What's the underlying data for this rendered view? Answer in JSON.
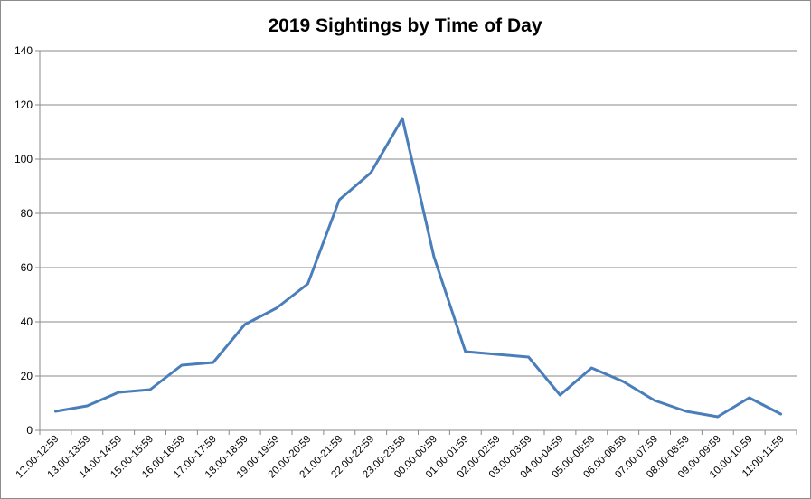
{
  "chart_data": {
    "type": "line",
    "title": "2019 Sightings by Time of Day",
    "xlabel": "",
    "ylabel": "",
    "ylim": [
      0,
      140
    ],
    "yticks": [
      0,
      20,
      40,
      60,
      80,
      100,
      120,
      140
    ],
    "grid": true,
    "legend": "none",
    "categories": [
      "12:00-12:59",
      "13:00-13:59",
      "14:00-14:59",
      "15:00-15:59",
      "16:00-16:59",
      "17:00-17:59",
      "18:00-18:59",
      "19:00-19:59",
      "20:00-20:59",
      "21:00-21:59",
      "22:00-22:59",
      "23:00-23:59",
      "00:00-00:59",
      "01:00-01:59",
      "02:00-02:59",
      "03:00-03:59",
      "04:00-04:59",
      "05:00-05:59",
      "06:00-06:59",
      "07:00-07:59",
      "08:00-08:59",
      "09:00-09:59",
      "10:00-10:59",
      "11:00-11:59"
    ],
    "series": [
      {
        "color": "#4a7ebb",
        "values": [
          7,
          9,
          14,
          15,
          24,
          25,
          39,
          45,
          54,
          85,
          95,
          115,
          64,
          29,
          28,
          27,
          13,
          23,
          18,
          11,
          7,
          5,
          12,
          6
        ]
      }
    ]
  }
}
